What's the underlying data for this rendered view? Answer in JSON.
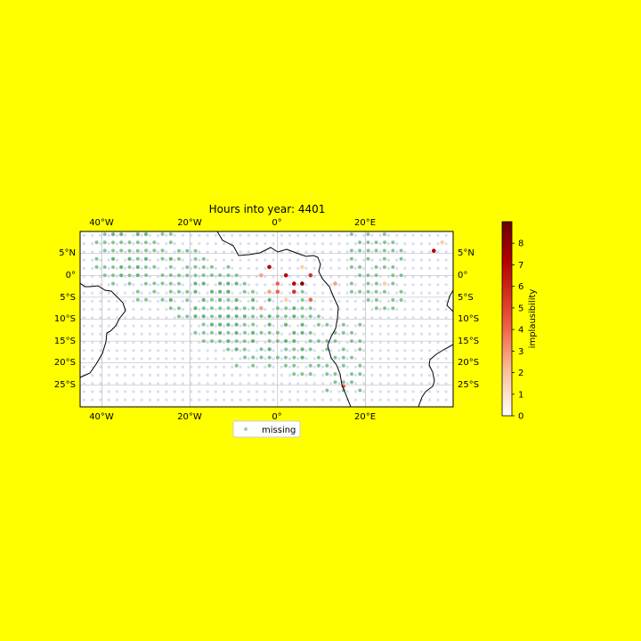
{
  "chart_data": {
    "type": "scatter",
    "title": "Hours into year: 4401",
    "map": {
      "lon_range": [
        -45,
        40
      ],
      "lat_range": [
        -30,
        10
      ],
      "lon_ticks": [
        -40,
        -20,
        0,
        20
      ],
      "lat_ticks": [
        5,
        0,
        -5,
        -10,
        -15,
        -20,
        -25
      ],
      "lon_tick_labels": [
        "40°W",
        "20°W",
        "0°",
        "20°E"
      ],
      "lat_tick_labels_left": [
        "5°N",
        "0°",
        "5°S",
        "10°S",
        "15°S",
        "20°S",
        "25°S"
      ],
      "lat_tick_labels_right": [
        "5°N",
        "0°",
        "5°S",
        "10°S",
        "15°S",
        "20°S",
        "25°S"
      ],
      "grid": true,
      "coastlines": true
    },
    "colorbar": {
      "label": "implausibility",
      "ticks": [
        "0",
        "1",
        "2",
        "3",
        "4",
        "5",
        "6",
        "7",
        "8"
      ],
      "range": [
        0,
        9
      ],
      "colors": [
        "#ffffff",
        "#fdd0a2",
        "#f4a582",
        "#ef6548",
        "#d7301f",
        "#b30000",
        "#7f0000"
      ]
    },
    "legend": {
      "placement": "lower-center",
      "entries": [
        "missing"
      ]
    },
    "missing_color": "#5fae6e",
    "background_point_color": "#c8cef0",
    "grid_spacing_deg": 1.875,
    "series": [
      {
        "name": "missing",
        "marker_lons": [
          -37.5,
          -33.75,
          -28.1,
          -20.6,
          -15,
          -13.1,
          -9.4,
          -5.6,
          1.9,
          5.6,
          15,
          20.6,
          24.4
        ],
        "marker_lats": [
          7.5,
          5.6,
          1.9,
          -1.9,
          -5.6,
          -7.5,
          -9.4,
          -13.1,
          -11.25,
          -15,
          -18.75,
          3.75,
          0
        ]
      },
      {
        "name": "implausibility",
        "points": [
          {
            "lon": -1.9,
            "lat": 1.9,
            "value": 7
          },
          {
            "lon": 1.9,
            "lat": 0,
            "value": 7
          },
          {
            "lon": 3.75,
            "lat": -1.9,
            "value": 8
          },
          {
            "lon": 5.6,
            "lat": -1.9,
            "value": 8.5
          },
          {
            "lon": 7.5,
            "lat": 0,
            "value": 6
          },
          {
            "lon": 3.75,
            "lat": -3.75,
            "value": 6
          },
          {
            "lon": 0,
            "lat": -1.9,
            "value": 5
          },
          {
            "lon": 0,
            "lat": -3.75,
            "value": 4
          },
          {
            "lon": -1.9,
            "lat": -3.75,
            "value": 3
          },
          {
            "lon": 1.9,
            "lat": -5.6,
            "value": 2
          },
          {
            "lon": -3.75,
            "lat": -7.5,
            "value": 3
          },
          {
            "lon": 7.5,
            "lat": -5.6,
            "value": 4
          },
          {
            "lon": 35.6,
            "lat": 5.6,
            "value": 7
          },
          {
            "lon": 37.5,
            "lat": 7.5,
            "value": 2
          },
          {
            "lon": 13.1,
            "lat": -1.9,
            "value": 3
          },
          {
            "lon": 24.4,
            "lat": -1.9,
            "value": 2
          },
          {
            "lon": 15,
            "lat": -25.3,
            "value": 5
          },
          {
            "lon": -3.75,
            "lat": 0,
            "value": 3
          },
          {
            "lon": 5.6,
            "lat": 1.9,
            "value": 2
          }
        ]
      }
    ]
  }
}
